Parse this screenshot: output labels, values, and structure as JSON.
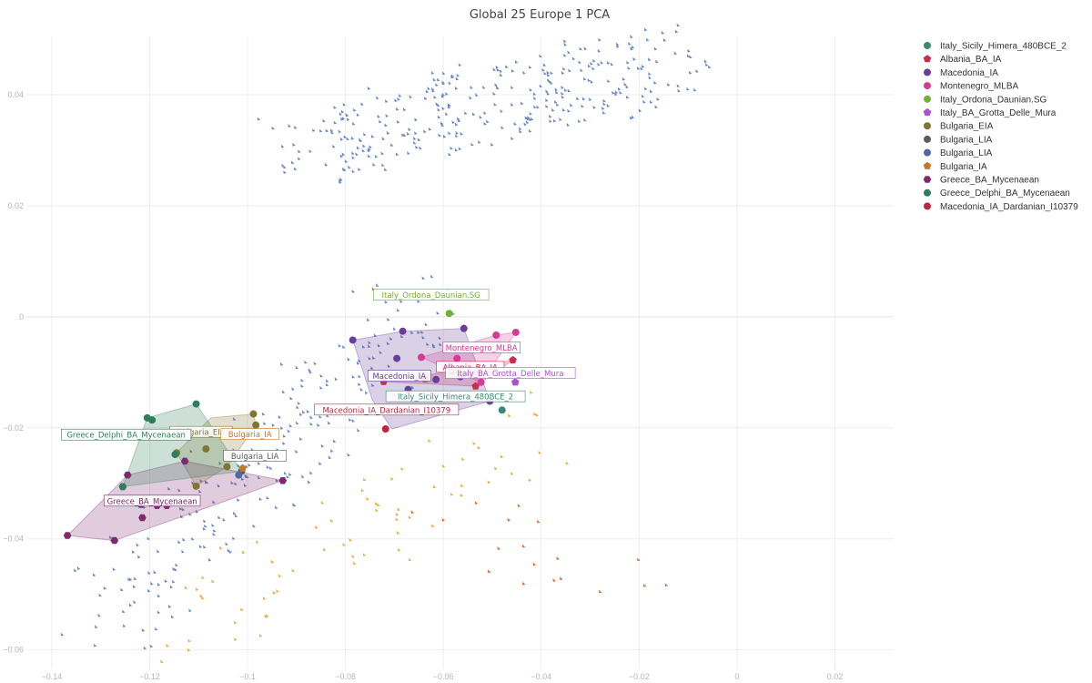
{
  "chart_data": {
    "type": "scatter",
    "title": "Global 25 Europe 1 PCA",
    "xlim": [
      -0.145,
      0.032
    ],
    "ylim": [
      -0.0635,
      0.0505
    ],
    "x_ticks": [
      -0.14,
      -0.12,
      -0.1,
      -0.08,
      -0.06,
      -0.04,
      -0.02,
      0,
      0.02
    ],
    "x_tick_labels": [
      "−0.14",
      "−0.12",
      "−0.1",
      "−0.08",
      "−0.06",
      "−0.04",
      "−0.02",
      "0",
      "0.02"
    ],
    "y_ticks": [
      0.04,
      0.02,
      0,
      -0.02,
      -0.04,
      -0.06
    ],
    "y_tick_labels": [
      "0.04",
      "0.02",
      "0",
      "−0.02",
      "−0.04",
      "−0.06"
    ],
    "grid": true,
    "legend_position": "top-right",
    "series": [
      {
        "name": "Italy_Sicily_Himera_480BCE_2",
        "color": "#3a8a73",
        "marker": "circle",
        "points": [
          [
            -0.048,
            -0.0168
          ]
        ],
        "label": "Italy_Sicily_Himera_480BCE_2",
        "label_at": [
          -0.0575,
          -0.0144
        ]
      },
      {
        "name": "Albania_BA_IA",
        "color": "#cc2b4e",
        "marker": "pentagon",
        "points": [
          [
            -0.0722,
            -0.0117
          ],
          [
            -0.0637,
            -0.0112
          ],
          [
            -0.0583,
            -0.0098
          ],
          [
            -0.0458,
            -0.0078
          ],
          [
            -0.0534,
            -0.0125
          ]
        ],
        "hull": [
          [
            -0.0722,
            -0.0117
          ],
          [
            -0.0583,
            -0.0098
          ],
          [
            -0.0458,
            -0.0078
          ],
          [
            -0.0534,
            -0.0125
          ]
        ],
        "label": "Albania_BA_IA",
        "label_at": [
          -0.0545,
          -0.0091
        ]
      },
      {
        "name": "Macedonia_IA",
        "color": "#6a3d9a",
        "marker": "circle",
        "points": [
          [
            -0.0785,
            -0.0042
          ],
          [
            -0.0683,
            -0.0026
          ],
          [
            -0.0558,
            -0.0021
          ],
          [
            -0.0695,
            -0.0075
          ],
          [
            -0.0672,
            -0.0131
          ],
          [
            -0.0615,
            -0.0113
          ],
          [
            -0.0505,
            -0.0152
          ],
          [
            -0.0565,
            -0.0108
          ]
        ],
        "hull": [
          [
            -0.0785,
            -0.0042
          ],
          [
            -0.0683,
            -0.0026
          ],
          [
            -0.0558,
            -0.0021
          ],
          [
            -0.0505,
            -0.0152
          ],
          [
            -0.0705,
            -0.0202
          ],
          [
            -0.0745,
            -0.015
          ]
        ],
        "label": "Macedonia_IA",
        "label_at": [
          -0.069,
          -0.0107
        ]
      },
      {
        "name": "Montenegro_MLBA",
        "color": "#d63a95",
        "marker": "circle",
        "points": [
          [
            -0.0572,
            -0.0075
          ],
          [
            -0.0492,
            -0.0033
          ],
          [
            -0.0452,
            -0.0028
          ],
          [
            -0.0645,
            -0.0073
          ],
          [
            -0.0595,
            -0.0092
          ],
          [
            -0.0523,
            -0.0118
          ]
        ],
        "hull": [
          [
            -0.0645,
            -0.0073
          ],
          [
            -0.0492,
            -0.0033
          ],
          [
            -0.0452,
            -0.0028
          ],
          [
            -0.0523,
            -0.0118
          ],
          [
            -0.0595,
            -0.0092
          ]
        ],
        "label": "Montenegro_MLBA",
        "label_at": [
          -0.0522,
          -0.0056
        ]
      },
      {
        "name": "Italy_Ordona_Daunian.SG",
        "color": "#73b032",
        "marker": "circle",
        "points": [
          [
            -0.0588,
            0.0006
          ]
        ],
        "label": "Italy_Ordona_Daunian.SG",
        "label_at": [
          -0.0625,
          0.0039
        ]
      },
      {
        "name": "Italy_BA_Grotta_Delle_Mura",
        "color": "#ad4fd1",
        "marker": "pentagon",
        "points": [
          [
            -0.0453,
            -0.0118
          ]
        ],
        "label": "Italy_BA_Grotta_Delle_Mura",
        "label_at": [
          -0.0463,
          -0.0102
        ]
      },
      {
        "name": "Bulgaria_EIA",
        "color": "#807632",
        "marker": "circle",
        "points": [
          [
            -0.1145,
            -0.0245
          ],
          [
            -0.1085,
            -0.0238
          ],
          [
            -0.1105,
            -0.0305
          ],
          [
            -0.0988,
            -0.0175
          ],
          [
            -0.0983,
            -0.0195
          ],
          [
            -0.1042,
            -0.027
          ]
        ],
        "hull": [
          [
            -0.1145,
            -0.0245
          ],
          [
            -0.1075,
            -0.0182
          ],
          [
            -0.0988,
            -0.0175
          ],
          [
            -0.0983,
            -0.0195
          ],
          [
            -0.1042,
            -0.027
          ],
          [
            -0.1105,
            -0.0305
          ]
        ],
        "label": "Bulgaria_EIA",
        "label_at": [
          -0.1095,
          -0.0208
        ]
      },
      {
        "name": "Bulgaria_LIA",
        "color": "#5c5c5c",
        "marker": "circle",
        "points": [
          [
            -0.1012,
            -0.0278
          ]
        ],
        "label": "Bulgaria_LIA",
        "label_at": [
          -0.0985,
          -0.0251
        ]
      },
      {
        "name": "Bulgaria_LIA",
        "color": "#4e6aa6",
        "marker": "circle",
        "points": [
          [
            -0.1018,
            -0.0285
          ]
        ]
      },
      {
        "name": "Bulgaria_IA",
        "color": "#c4782d",
        "marker": "pentagon",
        "points": [
          [
            -0.101,
            -0.0273
          ]
        ],
        "label": "Bulgaria_IA",
        "label_at": [
          -0.0995,
          -0.0212
        ]
      },
      {
        "name": "Greece_BA_Mycenaean",
        "color": "#7d2a6e",
        "marker": "hexagon",
        "points": [
          [
            -0.1368,
            -0.0394
          ],
          [
            -0.1272,
            -0.0403
          ],
          [
            -0.1215,
            -0.0362
          ],
          [
            -0.1255,
            -0.0306
          ],
          [
            -0.1218,
            -0.0338
          ],
          [
            -0.1185,
            -0.034
          ],
          [
            -0.1128,
            -0.026
          ],
          [
            -0.0928,
            -0.0295
          ],
          [
            -0.1245,
            -0.0285
          ],
          [
            -0.1165,
            -0.034
          ]
        ],
        "hull": [
          [
            -0.1368,
            -0.0394
          ],
          [
            -0.1245,
            -0.0285
          ],
          [
            -0.1128,
            -0.026
          ],
          [
            -0.0928,
            -0.0295
          ],
          [
            -0.1272,
            -0.0403
          ]
        ],
        "label": "Greece_BA_Mycenaean",
        "label_at": [
          -0.1195,
          -0.0332
        ]
      },
      {
        "name": "Greece_Delphi_BA_Mycenaean",
        "color": "#2f7d5b",
        "marker": "circle",
        "points": [
          [
            -0.1205,
            -0.0182
          ],
          [
            -0.1195,
            -0.0186
          ],
          [
            -0.1105,
            -0.0157
          ],
          [
            -0.1148,
            -0.0248
          ],
          [
            -0.1255,
            -0.0306
          ]
        ],
        "hull": [
          [
            -0.1205,
            -0.0182
          ],
          [
            -0.1105,
            -0.0157
          ],
          [
            -0.1012,
            -0.0278
          ],
          [
            -0.1255,
            -0.0306
          ]
        ],
        "label": "Greece_Delphi_BA_Mycenaean",
        "label_at": [
          -0.1248,
          -0.0213
        ]
      },
      {
        "name": "Macedonia_IA_Dardanian_I10379",
        "color": "#c2243d",
        "marker": "circle",
        "points": [
          [
            -0.0718,
            -0.0202
          ]
        ],
        "label": "Macedonia_IA_Dardanian_I10379",
        "label_at": [
          -0.0716,
          -0.0168
        ]
      }
    ],
    "background_samples": [
      {
        "color": "#6a87c4",
        "region": [
          -0.09,
          0.03,
          -0.012,
          0.046
        ],
        "count": 330
      },
      {
        "color": "#6a87c4",
        "region": [
          -0.13,
          -0.055,
          -0.062,
          0.005
        ],
        "count": 230
      },
      {
        "color": "#f2a93b",
        "region": [
          -0.12,
          -0.058,
          -0.038,
          -0.02
        ],
        "count": 70
      },
      {
        "color": "#e0672e",
        "region": [
          -0.065,
          -0.038,
          -0.02,
          -0.045
        ],
        "count": 18
      }
    ]
  }
}
